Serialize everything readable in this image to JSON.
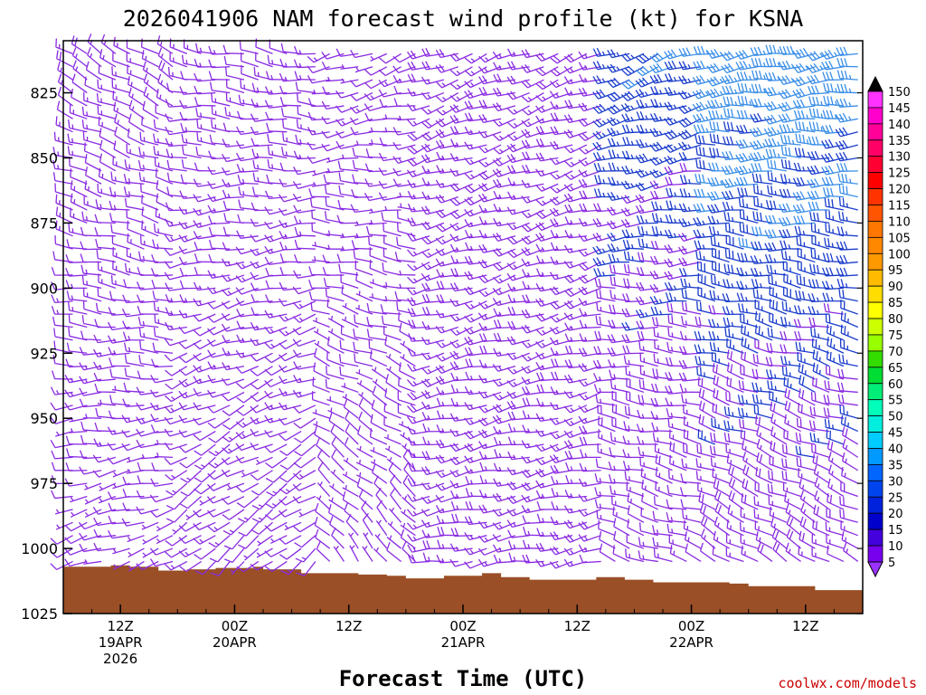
{
  "header": {
    "title": "2026041906 NAM forecast wind profile (kt) for KSNA"
  },
  "footer": {
    "credit": "coolwx.com/models"
  },
  "colors": {
    "terrain": "#9a4f26",
    "barb_violet": "#8a2be2",
    "barb_blue": "#1a3ccc",
    "barb_lightblue": "#3a8ee8"
  },
  "chart_data": {
    "type": "wind-barb profile",
    "title": "2026041906 NAM forecast wind profile (kt) for KSNA",
    "xlabel": "Forecast Time (UTC)",
    "ylabel": "",
    "ylim": [
      1025,
      805
    ],
    "y_ticks": [
      825,
      850,
      875,
      900,
      925,
      950,
      975,
      1000,
      1025
    ],
    "x_range_hours": [
      0,
      84
    ],
    "x_ticks": [
      {
        "hour": 6,
        "line1": "12Z",
        "line2": "19APR",
        "line3": "2026"
      },
      {
        "hour": 18,
        "line1": "00Z",
        "line2": "20APR",
        "line3": ""
      },
      {
        "hour": 30,
        "line1": "12Z",
        "line2": "",
        "line3": ""
      },
      {
        "hour": 42,
        "line1": "00Z",
        "line2": "21APR",
        "line3": ""
      },
      {
        "hour": 54,
        "line1": "12Z",
        "line2": "",
        "line3": ""
      },
      {
        "hour": 66,
        "line1": "00Z",
        "line2": "22APR",
        "line3": ""
      },
      {
        "hour": 78,
        "line1": "12Z",
        "line2": "",
        "line3": ""
      }
    ],
    "colorbar": {
      "units": "kt",
      "labels": [
        150,
        145,
        140,
        135,
        130,
        125,
        120,
        115,
        110,
        105,
        100,
        95,
        90,
        85,
        80,
        75,
        70,
        65,
        60,
        55,
        50,
        45,
        40,
        35,
        30,
        25,
        20,
        15,
        10,
        5
      ],
      "colors": [
        "#ff33ff",
        "#ff00cc",
        "#ff0099",
        "#ff0066",
        "#ff0033",
        "#ff0000",
        "#ff3300",
        "#ff5500",
        "#ff7700",
        "#ff8800",
        "#ff9900",
        "#ffbb00",
        "#ffdd00",
        "#ffff00",
        "#ccff00",
        "#99ff00",
        "#33dd00",
        "#00dd33",
        "#00ee77",
        "#00ffbb",
        "#00eedd",
        "#00ccff",
        "#0099ff",
        "#0066ff",
        "#0044ee",
        "#0022dd",
        "#0000cc",
        "#4400dd",
        "#7700ee",
        "#9933ff"
      ]
    },
    "surface_pressure": [
      [
        0,
        1007
      ],
      [
        5,
        1006.5
      ],
      [
        7,
        1007
      ],
      [
        10,
        1008.5
      ],
      [
        13,
        1008
      ],
      [
        16,
        1007.5
      ],
      [
        20,
        1007
      ],
      [
        21,
        1008
      ],
      [
        25,
        1009.5
      ],
      [
        29,
        1009.5
      ],
      [
        31,
        1010
      ],
      [
        34,
        1010.5
      ],
      [
        36,
        1011.5
      ],
      [
        38,
        1011.5
      ],
      [
        40,
        1010.5
      ],
      [
        44,
        1009.5
      ],
      [
        46,
        1011
      ],
      [
        49,
        1012
      ],
      [
        53,
        1012
      ],
      [
        56,
        1011
      ],
      [
        59,
        1012
      ],
      [
        62,
        1013
      ],
      [
        66,
        1013
      ],
      [
        70,
        1013.5
      ],
      [
        72,
        1014.5
      ],
      [
        77,
        1014.5
      ],
      [
        79,
        1016
      ],
      [
        84,
        1016
      ]
    ],
    "barbs": {
      "time_step_hours": 1.5,
      "levels": [
        810,
        815,
        820,
        825,
        830,
        835,
        840,
        845,
        850,
        855,
        860,
        865,
        870,
        875,
        880,
        885,
        890,
        895,
        900,
        905,
        910,
        915,
        920,
        925,
        930,
        935,
        940,
        945,
        950,
        955,
        960,
        965,
        970,
        975,
        980,
        985,
        990,
        995,
        1000,
        1005
      ],
      "regimes": [
        {
          "from_hour": 0,
          "to_hour": 12,
          "upper_dir_deg": 300,
          "lower_dir_deg": 250,
          "upper_speed_kt": 15,
          "lower_speed_kt": 8
        },
        {
          "from_hour": 12,
          "to_hour": 27,
          "upper_dir_deg": 280,
          "lower_dir_deg": 230,
          "upper_speed_kt": 12,
          "lower_speed_kt": 10
        },
        {
          "from_hour": 27,
          "to_hour": 38,
          "upper_dir_deg": 250,
          "lower_dir_deg": 320,
          "upper_speed_kt": 10,
          "lower_speed_kt": 8
        },
        {
          "from_hour": 38,
          "to_hour": 58,
          "upper_dir_deg": 250,
          "lower_dir_deg": 260,
          "upper_speed_kt": 18,
          "lower_speed_kt": 15
        },
        {
          "from_hour": 58,
          "to_hour": 68,
          "upper_dir_deg": 250,
          "lower_dir_deg": 290,
          "upper_speed_kt": 28,
          "lower_speed_kt": 12
        },
        {
          "from_hour": 68,
          "to_hour": 84,
          "upper_dir_deg": 260,
          "lower_dir_deg": 300,
          "upper_speed_kt": 35,
          "lower_speed_kt": 15
        }
      ]
    }
  }
}
